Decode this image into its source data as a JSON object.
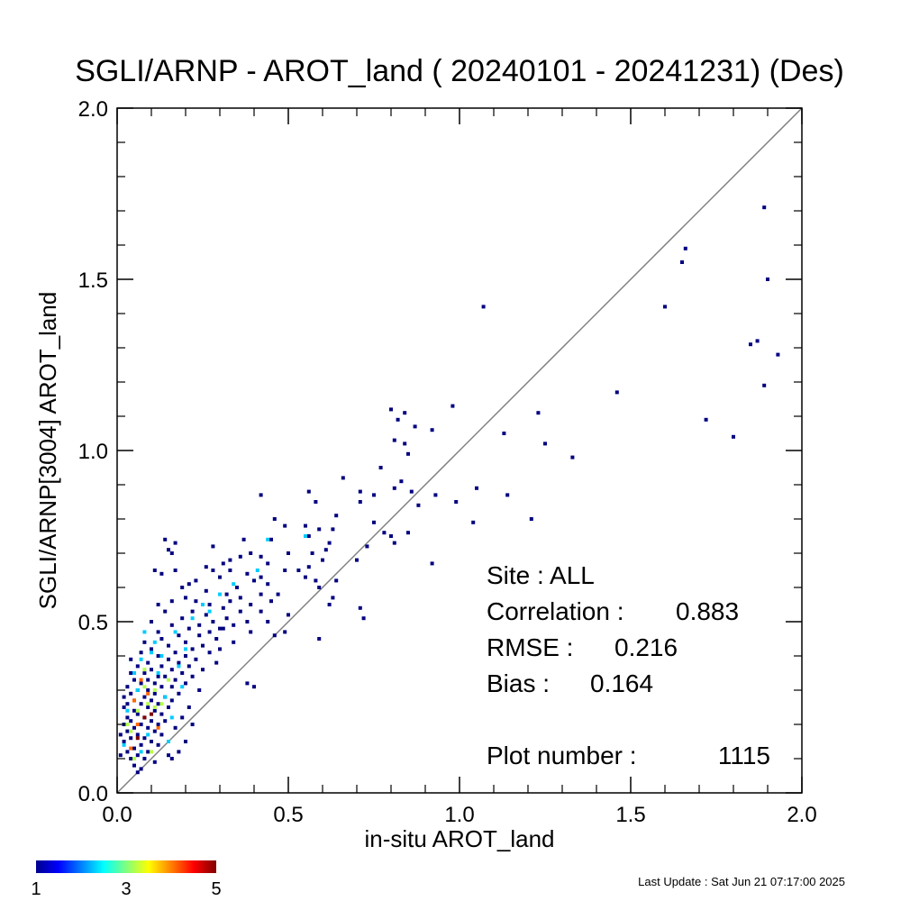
{
  "chart_data": {
    "type": "heatmap",
    "title": "SGLI/ARNP - AROT_land ( 20240101 - 20241231) (Des)",
    "xlabel": "in-situ AROT_land",
    "ylabel": "SGLI/ARNP[3004]    AROT_land",
    "xlim": [
      0,
      2
    ],
    "ylim": [
      0,
      2
    ],
    "xticks": [
      "0.0",
      "0.5",
      "1.0",
      "1.5",
      "2.0"
    ],
    "yticks": [
      "0.0",
      "0.5",
      "1.0",
      "1.5",
      "2.0"
    ],
    "one_to_one_line": true,
    "bin_size": 0.01,
    "colorbar": {
      "min_label": "1",
      "mid_label": "3",
      "max_label": "5",
      "colormap": "jet",
      "range": [
        1,
        5
      ]
    },
    "stats": {
      "site": "Site : ALL",
      "correlation_label": "Correlation :",
      "correlation": "0.883",
      "rmse_label": "RMSE :",
      "rmse": "0.216",
      "bias_label": "Bias :",
      "bias": "0.164",
      "plot_number_label": "Plot number :",
      "plot_number": "1115"
    },
    "points": [
      [
        1.89,
        1.71
      ],
      [
        1.66,
        1.59
      ],
      [
        1.65,
        1.55
      ],
      [
        1.9,
        1.5
      ],
      [
        1.6,
        1.42
      ],
      [
        1.07,
        1.42
      ],
      [
        1.87,
        1.32
      ],
      [
        1.85,
        1.31
      ],
      [
        1.93,
        1.28
      ],
      [
        1.89,
        1.19
      ],
      [
        1.46,
        1.17
      ],
      [
        0.8,
        1.12
      ],
      [
        0.84,
        1.11
      ],
      [
        1.23,
        1.11
      ],
      [
        0.82,
        1.09
      ],
      [
        1.72,
        1.09
      ],
      [
        0.87,
        1.07
      ],
      [
        0.98,
        1.13
      ],
      [
        0.92,
        1.06
      ],
      [
        1.13,
        1.05
      ],
      [
        1.8,
        1.04
      ],
      [
        0.81,
        1.03
      ],
      [
        0.84,
        1.02
      ],
      [
        1.25,
        1.02
      ],
      [
        0.85,
        0.99
      ],
      [
        1.33,
        0.98
      ],
      [
        0.77,
        0.95
      ],
      [
        0.66,
        0.92
      ],
      [
        0.83,
        0.91
      ],
      [
        0.81,
        0.89
      ],
      [
        1.05,
        0.89
      ],
      [
        0.71,
        0.88
      ],
      [
        0.56,
        0.88
      ],
      [
        0.42,
        0.87
      ],
      [
        0.75,
        0.87
      ],
      [
        0.86,
        0.88
      ],
      [
        0.93,
        0.87
      ],
      [
        1.14,
        0.87
      ],
      [
        0.71,
        0.85
      ],
      [
        0.58,
        0.85
      ],
      [
        0.88,
        0.84
      ],
      [
        0.64,
        0.81
      ],
      [
        0.99,
        0.85
      ],
      [
        0.46,
        0.8
      ],
      [
        1.21,
        0.8
      ],
      [
        1.04,
        0.79
      ],
      [
        0.75,
        0.79
      ],
      [
        0.49,
        0.78
      ],
      [
        0.55,
        0.78
      ],
      [
        0.63,
        0.77
      ],
      [
        0.78,
        0.76
      ],
      [
        0.8,
        0.75
      ],
      [
        0.85,
        0.76
      ],
      [
        0.59,
        0.77
      ],
      [
        0.45,
        0.74
      ],
      [
        0.37,
        0.74
      ],
      [
        0.56,
        0.75
      ],
      [
        0.81,
        0.73
      ],
      [
        0.28,
        0.72
      ],
      [
        0.73,
        0.72
      ],
      [
        0.14,
        0.74
      ],
      [
        0.17,
        0.73
      ],
      [
        0.62,
        0.73
      ],
      [
        0.15,
        0.71
      ],
      [
        0.16,
        0.7
      ],
      [
        0.57,
        0.7
      ],
      [
        0.5,
        0.7
      ],
      [
        0.39,
        0.7
      ],
      [
        0.42,
        0.69
      ],
      [
        0.7,
        0.68
      ],
      [
        0.61,
        0.71
      ],
      [
        0.6,
        0.68
      ],
      [
        0.33,
        0.68
      ],
      [
        0.36,
        0.69
      ],
      [
        0.44,
        0.67
      ],
      [
        0.26,
        0.66
      ],
      [
        0.31,
        0.67
      ],
      [
        0.49,
        0.65
      ],
      [
        0.53,
        0.65
      ],
      [
        0.56,
        0.66
      ],
      [
        0.92,
        0.67
      ],
      [
        0.28,
        0.65
      ],
      [
        0.33,
        0.65
      ],
      [
        0.11,
        0.65
      ],
      [
        0.13,
        0.64
      ],
      [
        0.17,
        0.65
      ],
      [
        0.38,
        0.64
      ],
      [
        0.42,
        0.63
      ],
      [
        0.55,
        0.63
      ],
      [
        0.58,
        0.62
      ],
      [
        0.3,
        0.63
      ],
      [
        0.23,
        0.62
      ],
      [
        0.21,
        0.61
      ],
      [
        0.4,
        0.62
      ],
      [
        0.44,
        0.61
      ],
      [
        0.64,
        0.62
      ],
      [
        0.59,
        0.6
      ],
      [
        0.19,
        0.6
      ],
      [
        0.35,
        0.6
      ],
      [
        0.26,
        0.59
      ],
      [
        0.47,
        0.58
      ],
      [
        0.42,
        0.58
      ],
      [
        0.2,
        0.57
      ],
      [
        0.36,
        0.57
      ],
      [
        0.63,
        0.57
      ],
      [
        0.16,
        0.56
      ],
      [
        0.23,
        0.56
      ],
      [
        0.33,
        0.56
      ],
      [
        0.39,
        0.55
      ],
      [
        0.27,
        0.55
      ],
      [
        0.45,
        0.56
      ],
      [
        0.62,
        0.55
      ],
      [
        0.71,
        0.54
      ],
      [
        0.12,
        0.55
      ],
      [
        0.31,
        0.54
      ],
      [
        0.42,
        0.53
      ],
      [
        0.36,
        0.53
      ],
      [
        0.22,
        0.53
      ],
      [
        0.14,
        0.53
      ],
      [
        0.26,
        0.52
      ],
      [
        0.5,
        0.52
      ],
      [
        0.72,
        0.51
      ],
      [
        0.19,
        0.51
      ],
      [
        0.32,
        0.51
      ],
      [
        0.38,
        0.5
      ],
      [
        0.28,
        0.5
      ],
      [
        0.44,
        0.5
      ],
      [
        0.1,
        0.5
      ],
      [
        0.24,
        0.49
      ],
      [
        0.16,
        0.49
      ],
      [
        0.34,
        0.49
      ],
      [
        0.21,
        0.48
      ],
      [
        0.31,
        0.48
      ],
      [
        0.12,
        0.47
      ],
      [
        0.27,
        0.47
      ],
      [
        0.39,
        0.47
      ],
      [
        0.46,
        0.46
      ],
      [
        0.18,
        0.46
      ],
      [
        0.24,
        0.46
      ],
      [
        0.59,
        0.45
      ],
      [
        0.13,
        0.45
      ],
      [
        0.29,
        0.45
      ],
      [
        0.34,
        0.44
      ],
      [
        0.08,
        0.44
      ],
      [
        0.2,
        0.44
      ],
      [
        0.25,
        0.43
      ],
      [
        0.15,
        0.43
      ],
      [
        0.1,
        0.42
      ],
      [
        0.3,
        0.42
      ],
      [
        0.22,
        0.42
      ],
      [
        0.17,
        0.41
      ],
      [
        0.07,
        0.41
      ],
      [
        0.27,
        0.41
      ],
      [
        0.12,
        0.4
      ],
      [
        0.2,
        0.4
      ],
      [
        0.04,
        0.39
      ],
      [
        0.15,
        0.39
      ],
      [
        0.23,
        0.39
      ],
      [
        0.09,
        0.38
      ],
      [
        0.18,
        0.38
      ],
      [
        0.29,
        0.38
      ],
      [
        0.06,
        0.37
      ],
      [
        0.13,
        0.37
      ],
      [
        0.21,
        0.37
      ],
      [
        0.1,
        0.36
      ],
      [
        0.16,
        0.36
      ],
      [
        0.25,
        0.36
      ],
      [
        0.04,
        0.35
      ],
      [
        0.08,
        0.35
      ],
      [
        0.19,
        0.35
      ],
      [
        0.12,
        0.34
      ],
      [
        0.14,
        0.34
      ],
      [
        0.22,
        0.34
      ],
      [
        0.05,
        0.33
      ],
      [
        0.09,
        0.33
      ],
      [
        0.17,
        0.33
      ],
      [
        0.38,
        0.32
      ],
      [
        0.07,
        0.32
      ],
      [
        0.11,
        0.32
      ],
      [
        0.2,
        0.32
      ],
      [
        0.03,
        0.31
      ],
      [
        0.13,
        0.31
      ],
      [
        0.16,
        0.31
      ],
      [
        0.06,
        0.3
      ],
      [
        0.09,
        0.3
      ],
      [
        0.24,
        0.3
      ],
      [
        0.04,
        0.29
      ],
      [
        0.11,
        0.29
      ],
      [
        0.18,
        0.29
      ],
      [
        0.02,
        0.28
      ],
      [
        0.08,
        0.28
      ],
      [
        0.14,
        0.28
      ],
      [
        0.05,
        0.27
      ],
      [
        0.1,
        0.27
      ],
      [
        0.16,
        0.27
      ],
      [
        0.03,
        0.26
      ],
      [
        0.07,
        0.26
      ],
      [
        0.12,
        0.26
      ],
      [
        0.21,
        0.25
      ],
      [
        0.02,
        0.25
      ],
      [
        0.09,
        0.25
      ],
      [
        0.15,
        0.25
      ],
      [
        0.05,
        0.24
      ],
      [
        0.11,
        0.24
      ],
      [
        0.06,
        0.23
      ],
      [
        0.13,
        0.23
      ],
      [
        0.19,
        0.22
      ],
      [
        0.03,
        0.22
      ],
      [
        0.08,
        0.22
      ],
      [
        0.1,
        0.21
      ],
      [
        0.04,
        0.21
      ],
      [
        0.14,
        0.21
      ],
      [
        0.07,
        0.2
      ],
      [
        0.12,
        0.2
      ],
      [
        0.02,
        0.2
      ],
      [
        0.17,
        0.19
      ],
      [
        0.05,
        0.19
      ],
      [
        0.09,
        0.19
      ],
      [
        0.03,
        0.18
      ],
      [
        0.11,
        0.18
      ],
      [
        0.06,
        0.17
      ],
      [
        0.13,
        0.17
      ],
      [
        0.01,
        0.17
      ],
      [
        0.08,
        0.16
      ],
      [
        0.04,
        0.16
      ],
      [
        0.1,
        0.15
      ],
      [
        0.02,
        0.15
      ],
      [
        0.07,
        0.14
      ],
      [
        0.12,
        0.14
      ],
      [
        0.05,
        0.13
      ],
      [
        0.03,
        0.12
      ],
      [
        0.09,
        0.12
      ],
      [
        0.06,
        0.11
      ],
      [
        0.01,
        0.11
      ],
      [
        0.08,
        0.1
      ],
      [
        0.04,
        0.1
      ],
      [
        0.11,
        0.09
      ],
      [
        0.05,
        0.08
      ],
      [
        0.07,
        0.07
      ],
      [
        0.06,
        0.06
      ],
      [
        0.15,
        0.11
      ],
      [
        0.2,
        0.15
      ],
      [
        0.18,
        0.12
      ],
      [
        0.3,
        0.48
      ],
      [
        0.22,
        0.2
      ],
      [
        0.16,
        0.1
      ],
      [
        0.4,
        0.31
      ],
      [
        0.49,
        0.47
      ],
      [
        0.32,
        0.58
      ]
    ],
    "hot_points": [
      [
        0.06,
        0.16,
        5
      ],
      [
        0.08,
        0.22,
        5
      ],
      [
        0.05,
        0.27,
        4
      ],
      [
        0.1,
        0.23,
        5
      ],
      [
        0.09,
        0.29,
        4
      ],
      [
        0.12,
        0.19,
        4
      ],
      [
        0.04,
        0.13,
        4
      ],
      [
        0.07,
        0.33,
        4
      ],
      [
        0.11,
        0.3,
        3
      ],
      [
        0.06,
        0.24,
        3
      ],
      [
        0.13,
        0.26,
        3
      ],
      [
        0.08,
        0.36,
        3
      ],
      [
        0.03,
        0.2,
        3
      ],
      [
        0.05,
        0.1,
        3
      ],
      [
        0.1,
        0.12,
        3
      ],
      [
        0.15,
        0.33,
        3
      ],
      [
        0.04,
        0.18,
        3
      ],
      [
        0.12,
        0.35,
        2
      ],
      [
        0.07,
        0.39,
        2
      ],
      [
        0.09,
        0.17,
        2
      ],
      [
        0.14,
        0.28,
        2
      ],
      [
        0.16,
        0.22,
        2
      ],
      [
        0.02,
        0.14,
        2
      ],
      [
        0.06,
        0.3,
        2
      ],
      [
        0.1,
        0.41,
        2
      ],
      [
        0.18,
        0.37,
        2
      ],
      [
        0.11,
        0.44,
        2
      ],
      [
        0.05,
        0.35,
        2
      ],
      [
        0.13,
        0.4,
        2
      ],
      [
        0.2,
        0.42,
        2
      ],
      [
        0.08,
        0.47,
        2
      ],
      [
        0.17,
        0.47,
        2
      ],
      [
        0.22,
        0.51,
        2
      ],
      [
        0.25,
        0.55,
        2
      ],
      [
        0.3,
        0.58,
        2
      ],
      [
        0.34,
        0.61,
        2
      ],
      [
        0.55,
        0.75,
        2
      ],
      [
        0.44,
        0.74,
        2
      ],
      [
        0.41,
        0.65,
        2
      ],
      [
        0.27,
        0.53,
        2
      ],
      [
        0.19,
        0.31,
        2
      ],
      [
        0.15,
        0.15,
        2
      ],
      [
        0.03,
        0.24,
        2
      ],
      [
        0.07,
        0.12,
        2
      ],
      [
        0.09,
        0.26,
        3
      ],
      [
        0.06,
        0.2,
        4
      ],
      [
        0.11,
        0.25,
        3
      ],
      [
        0.08,
        0.31,
        3
      ]
    ]
  },
  "last_update": "Last Update : Sat Jun 21 07:17:00 2025"
}
